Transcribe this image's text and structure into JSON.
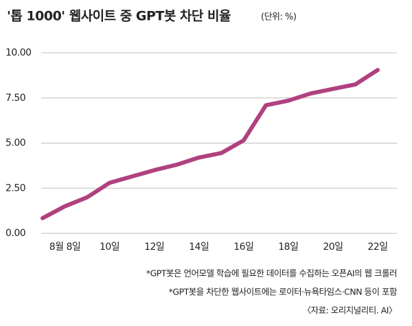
{
  "chart_data": {
    "type": "line",
    "title": "'톱 1000' 웹사이트 중 GPT봇 차단 비율",
    "subtitle": "(단위: %)",
    "categories": [
      null,
      "8월 8일",
      null,
      "10일",
      null,
      "12일",
      null,
      "14일",
      null,
      "16일",
      null,
      "18일",
      null,
      "20일",
      null,
      "22일"
    ],
    "values": [
      0.84,
      1.5,
      2.0,
      2.8,
      3.15,
      3.5,
      3.8,
      4.2,
      4.45,
      5.15,
      7.1,
      7.35,
      7.75,
      8.0,
      8.25,
      9.05
    ],
    "color": "#b0417f",
    "ylim": [
      0,
      10
    ],
    "yticks": [
      {
        "value": 10,
        "label": "10.00"
      },
      {
        "value": 7.5,
        "label": "7.50"
      },
      {
        "value": 5,
        "label": "5.00"
      },
      {
        "value": 2.5,
        "label": "2.50"
      },
      {
        "value": 0,
        "label": "0.00"
      }
    ],
    "grid": true,
    "notes": [
      "*GPT봇은 언어모델 학습에 필요한 데이터를 수집하는 오픈AI의 웹 크롤러",
      "*GPT봇을 차단한 웹사이트에는 로이터·뉴욕타임스·CNN 등이 포함"
    ],
    "source": "〈자료: 오리지널리티. AI〉"
  }
}
